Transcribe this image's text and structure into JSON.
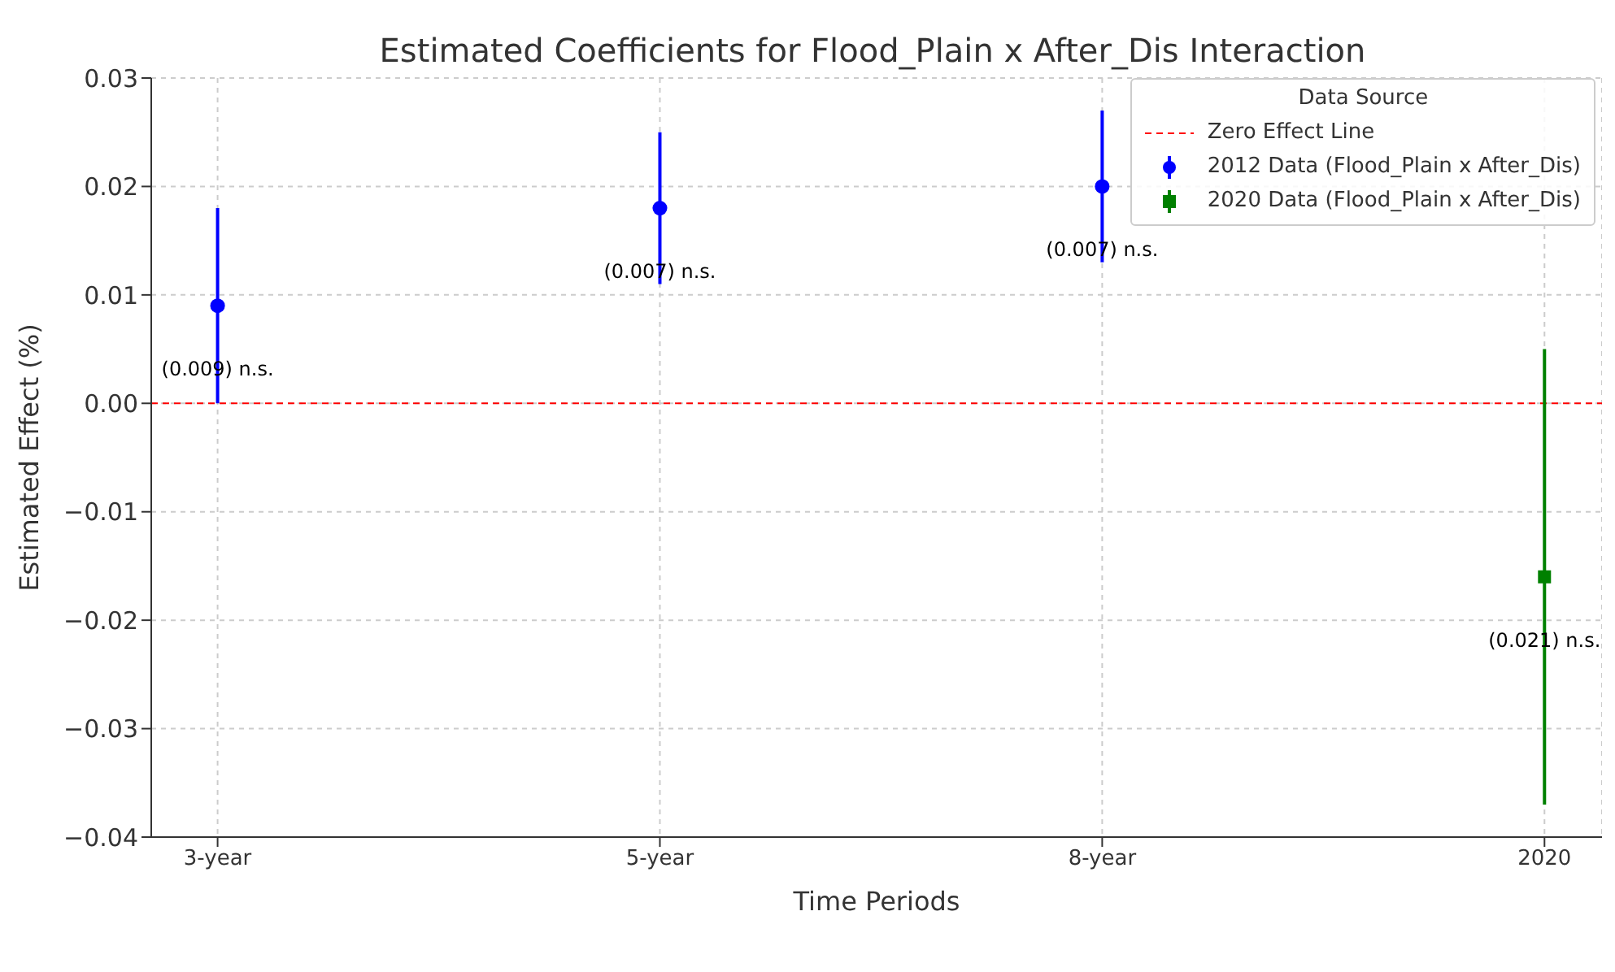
{
  "chart_data": {
    "type": "scatter",
    "title": "Estimated Coefficients for Flood_Plain x After_Dis Interaction",
    "xlabel": "Time Periods",
    "ylabel": "Estimated Effect (%)",
    "legend_title": "Data Source",
    "categories": [
      "3-year",
      "5-year",
      "8-year",
      "2020"
    ],
    "series": [
      {
        "name": "2012 Data (Flood_Plain x After_Dis)",
        "color": "#0000ff",
        "marker": "circle",
        "values": [
          0.009,
          0.018,
          0.02,
          null
        ],
        "errors": [
          0.009,
          0.007,
          0.007,
          null
        ]
      },
      {
        "name": "2020 Data (Flood_Plain x After_Dis)",
        "color": "#008000",
        "marker": "square",
        "values": [
          null,
          null,
          null,
          -0.016
        ],
        "errors": [
          null,
          null,
          null,
          0.021
        ]
      }
    ],
    "ylim": [
      -0.04,
      0.03
    ],
    "yticks": [
      {
        "value": -0.04,
        "label": "−0.04"
      },
      {
        "value": -0.03,
        "label": "−0.03"
      },
      {
        "value": -0.02,
        "label": "−0.02"
      },
      {
        "value": -0.01,
        "label": "−0.01"
      },
      {
        "value": 0,
        "label": "0.00"
      },
      {
        "value": 0.01,
        "label": "0.01"
      },
      {
        "value": 0.02,
        "label": "0.02"
      },
      {
        "value": 0.03,
        "label": "0.03"
      }
    ],
    "ref_lines": [
      {
        "axis": "y",
        "value": 0,
        "label": "Zero Effect Line",
        "color": "#ff0000",
        "line_style": "dashed"
      }
    ],
    "annotations": [
      {
        "text": "(0.009) n.s.",
        "x": "3-year",
        "y": 0.0032
      },
      {
        "text": "(0.007) n.s.",
        "x": "5-year",
        "y": 0.0122
      },
      {
        "text": "(0.007) n.s.",
        "x": "8-year",
        "y": 0.0142
      },
      {
        "text": "(0.021) n.s.",
        "x": "2020",
        "y": -0.0218
      }
    ],
    "grid": true,
    "legend": "top right"
  }
}
